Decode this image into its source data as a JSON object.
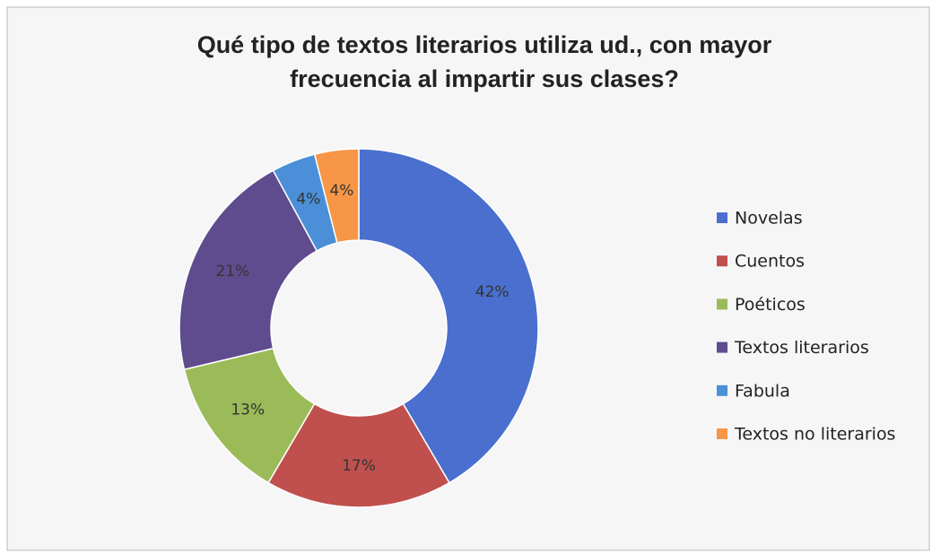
{
  "chart_data": {
    "type": "donut",
    "title": [
      "Qué tipo de textos literarios utiliza ud., con mayor",
      "frecuencia al impartir sus clases?"
    ],
    "categories": [
      "Novelas",
      "Cuentos",
      "Poéticos",
      "Textos literarios",
      "Fabula",
      "Textos no literarios"
    ],
    "values": [
      42,
      17,
      13,
      21,
      4,
      4
    ],
    "value_labels": [
      "42%",
      "17%",
      "13%",
      "21%",
      "4%",
      "4%"
    ],
    "colors": [
      "#4a6fcf",
      "#c0504d",
      "#9bbb59",
      "#5e4c8e",
      "#4a8fd8",
      "#f79646"
    ],
    "legend": "right"
  }
}
